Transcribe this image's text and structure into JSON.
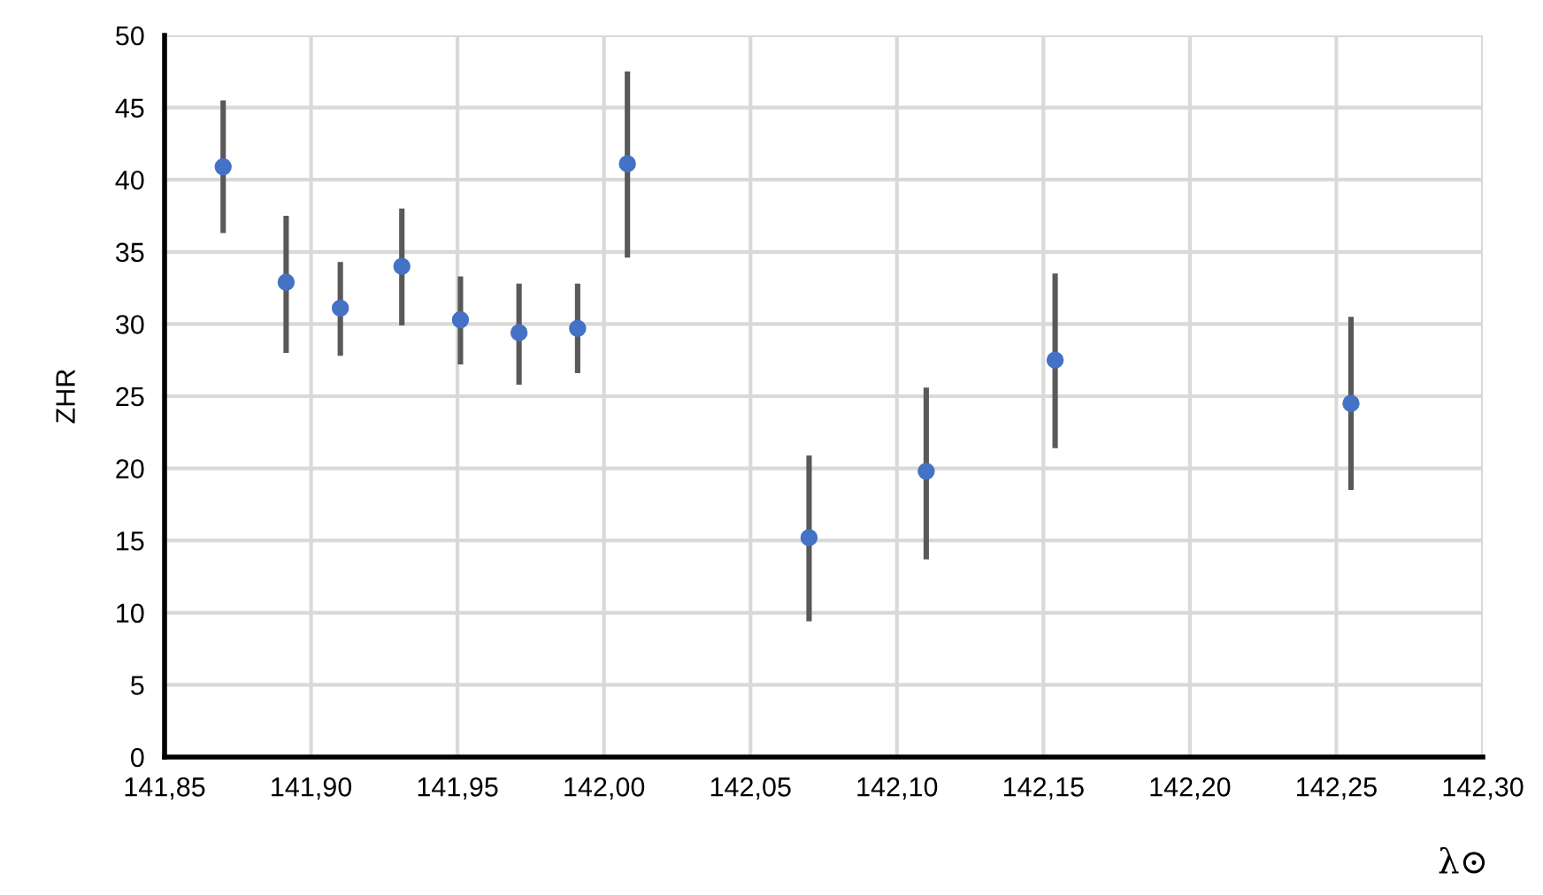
{
  "chart_data": {
    "type": "scatter",
    "xlabel": "λ⊙",
    "ylabel": "ZHR",
    "x": [
      141.87,
      141.8915,
      141.91,
      141.931,
      141.951,
      141.971,
      141.991,
      142.008,
      142.07,
      142.11,
      142.154,
      142.255
    ],
    "series": [
      {
        "color": "#4472c4",
        "values": [
          40.9,
          32.9,
          31.1,
          34.0,
          30.3,
          29.4,
          29.7,
          41.1,
          15.2,
          19.8,
          27.5,
          24.5
        ],
        "errors": [
          [
            36.3,
            45.5
          ],
          [
            28.0,
            37.5
          ],
          [
            27.8,
            34.3
          ],
          [
            29.9,
            38.0
          ],
          [
            27.2,
            33.3
          ],
          [
            25.8,
            32.8
          ],
          [
            26.6,
            32.8
          ],
          [
            34.6,
            47.5
          ],
          [
            9.4,
            20.9
          ],
          [
            13.7,
            25.6
          ],
          [
            21.4,
            33.5
          ],
          [
            18.5,
            30.5
          ]
        ]
      }
    ],
    "xlim": [
      141.85,
      142.3
    ],
    "xticks": [
      {
        "value": 141.85,
        "label": "141,85"
      },
      {
        "value": 141.9,
        "label": "141,90"
      },
      {
        "value": 141.95,
        "label": "141,95"
      },
      {
        "value": 142.0,
        "label": "142,00"
      },
      {
        "value": 142.05,
        "label": "142,05"
      },
      {
        "value": 142.1,
        "label": "142,10"
      },
      {
        "value": 142.15,
        "label": "142,15"
      },
      {
        "value": 142.2,
        "label": "142,20"
      },
      {
        "value": 142.25,
        "label": "142,25"
      },
      {
        "value": 142.3,
        "label": "142,30"
      }
    ],
    "ylim": [
      0,
      50
    ],
    "yticks": [
      0,
      5,
      10,
      15,
      20,
      25,
      30,
      35,
      40,
      45,
      50
    ],
    "grid": true,
    "marker": "circle"
  }
}
